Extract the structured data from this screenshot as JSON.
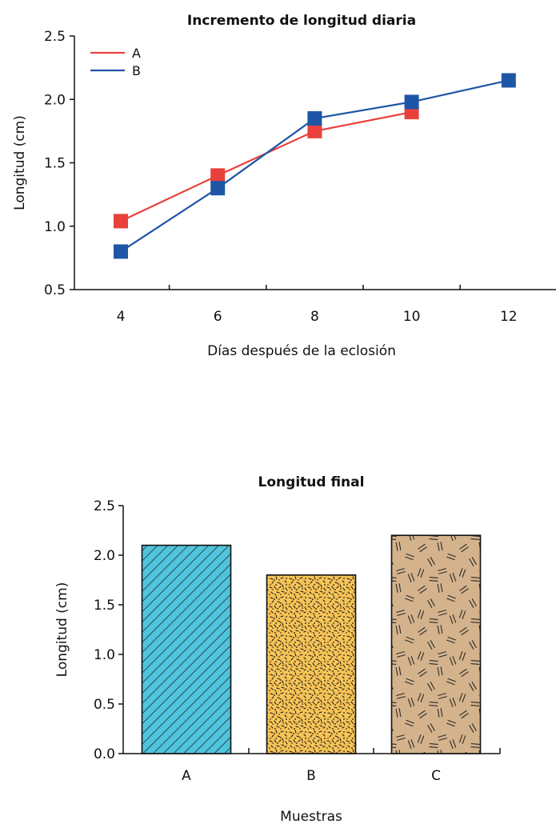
{
  "chart_data": [
    {
      "type": "line",
      "title": "Incremento de longitud diaria",
      "xlabel": "Días después de la eclosión",
      "ylabel": "Longitud (cm)",
      "x": [
        4,
        6,
        8,
        10,
        12
      ],
      "x_tick_labels": [
        "4",
        "6",
        "8",
        "10",
        "12"
      ],
      "y_tick_labels": [
        "0.5",
        "1.0",
        "1.5",
        "2.0",
        "2.5"
      ],
      "xlim": [
        3,
        13
      ],
      "ylim": [
        0.5,
        2.5
      ],
      "legend_position": "top-left",
      "grid": false,
      "series": [
        {
          "name": "A",
          "color": "#e8413c",
          "marker": "square",
          "points": [
            [
              4,
              1.04
            ],
            [
              6,
              1.4
            ],
            [
              8,
              1.75
            ],
            [
              10,
              1.9
            ]
          ]
        },
        {
          "name": "B",
          "color": "#1f55a6",
          "marker": "square",
          "points": [
            [
              4,
              0.8
            ],
            [
              6,
              1.3
            ],
            [
              8,
              1.85
            ],
            [
              10,
              1.98
            ],
            [
              12,
              2.15
            ]
          ]
        }
      ]
    },
    {
      "type": "bar",
      "title": "Longitud final",
      "xlabel": "Muestras",
      "ylabel": "Longitud (cm)",
      "categories": [
        "A",
        "B",
        "C"
      ],
      "values": [
        2.1,
        1.8,
        2.2
      ],
      "y_tick_labels": [
        "0.0",
        "0.5",
        "1.0",
        "1.5",
        "2.0",
        "2.5"
      ],
      "ylim": [
        0,
        2.5
      ],
      "grid": false,
      "bar_fills": [
        {
          "color": "#4fc4dc",
          "pattern": "diagonal-hatch"
        },
        {
          "color": "#f7c456",
          "pattern": "speckle"
        },
        {
          "color": "#d4b38c",
          "pattern": "scattered-dashes"
        }
      ]
    }
  ]
}
